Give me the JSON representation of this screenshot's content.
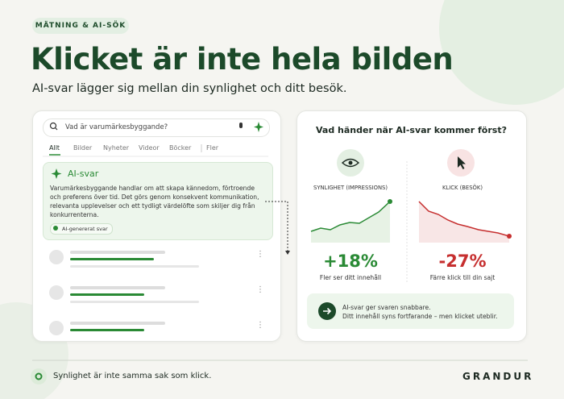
{
  "header": {
    "tag": "MÄTNING & AI-SÖK",
    "title": "Klicket är inte hela bilden",
    "subtitle": "AI-svar lägger sig mellan din synlighet och ditt besök."
  },
  "search": {
    "query": "Vad är varumärkesbyggande?",
    "tabs": [
      "Allt",
      "Bilder",
      "Nyheter",
      "Videor",
      "Böcker",
      "Fler"
    ],
    "ai_answer": {
      "title": "AI-svar",
      "text": "Varumärkesbyggande handlar om att skapa kännedom, förtroende och preferens över tid. Det görs genom konsekvent kommunikation, relevanta upplevelser och ett tydligt värdelöfte som skiljer dig från konkurrenterna.",
      "badge": "AI-genererat svar"
    }
  },
  "comparison": {
    "question": "Vad händer när AI-svar kommer först?",
    "metrics": [
      {
        "label": "SYNLIGHET (IMPRESSIONS)",
        "change": "+18%",
        "caption": "Fler ser ditt innehåll"
      },
      {
        "label": "KLICK (BESÖK)",
        "change": "-27%",
        "caption": "Färre klick till din sajt"
      }
    ],
    "callout": [
      "AI-svar ger svaren snabbare.",
      "Ditt innehåll syns fortfarande – men klicket uteblir."
    ]
  },
  "footer": {
    "note": "Synlighet är inte samma sak som klick.",
    "brand": "GRANDUR"
  }
}
